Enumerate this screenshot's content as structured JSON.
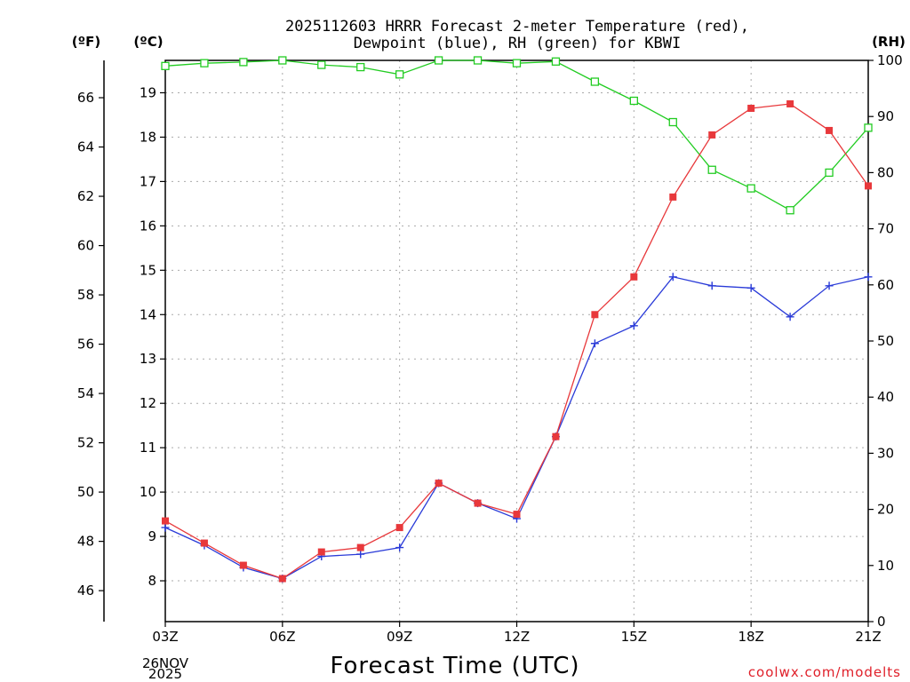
{
  "chart_data": {
    "type": "line",
    "title_line1": "2025112603 HRRR Forecast 2-meter Temperature (red),",
    "title_line2": "Dewpoint (blue), RH (green) for KBWI",
    "xlabel": "Forecast Time (UTC)",
    "x_hours": [
      3,
      4,
      5,
      6,
      7,
      8,
      9,
      10,
      11,
      12,
      13,
      14,
      15,
      16,
      17,
      18,
      19,
      20,
      21
    ],
    "x_ticks": [
      {
        "hour": 3,
        "label": "03Z"
      },
      {
        "hour": 6,
        "label": "06Z"
      },
      {
        "hour": 9,
        "label": "09Z"
      },
      {
        "hour": 12,
        "label": "12Z"
      },
      {
        "hour": 15,
        "label": "15Z"
      },
      {
        "hour": 18,
        "label": "18Z"
      },
      {
        "hour": 21,
        "label": "21Z"
      }
    ],
    "date_label_line1": "26NOV",
    "date_label_line2": "2025",
    "xlim": [
      3,
      21
    ],
    "y_left_c": {
      "unit": "(ºC)",
      "ylim": [
        7.08,
        19.73
      ],
      "ticks": [
        "8",
        "9",
        "10",
        "11",
        "12",
        "13",
        "14",
        "15",
        "16",
        "17",
        "18",
        "19"
      ]
    },
    "y_left_f": {
      "unit": "(ºF)",
      "ticks": [
        "46",
        "48",
        "50",
        "52",
        "54",
        "56",
        "58",
        "60",
        "62",
        "64",
        "66"
      ]
    },
    "y_right_rh": {
      "unit": "(RH)",
      "ylim": [
        0,
        100
      ],
      "ticks": [
        "0",
        "10",
        "20",
        "30",
        "40",
        "50",
        "60",
        "70",
        "80",
        "90",
        "100"
      ]
    },
    "series": [
      {
        "name": "Temperature",
        "axis": "c",
        "color": "#e8383b",
        "marker": "filled-square",
        "values": [
          9.35,
          8.85,
          8.35,
          8.05,
          8.65,
          8.75,
          9.2,
          10.2,
          9.75,
          9.5,
          11.25,
          14.0,
          14.85,
          16.65,
          18.05,
          18.65,
          18.75,
          18.15,
          16.9
        ]
      },
      {
        "name": "Dewpoint",
        "axis": "c",
        "color": "#2a3bd8",
        "marker": "plus",
        "values": [
          9.2,
          8.8,
          8.3,
          8.05,
          8.55,
          8.6,
          8.75,
          10.2,
          9.75,
          9.4,
          11.25,
          13.35,
          13.75,
          14.85,
          14.65,
          14.6,
          13.95,
          14.65,
          14.85
        ]
      },
      {
        "name": "RH",
        "axis": "rh",
        "color": "#22cc22",
        "marker": "open-square",
        "values": [
          99,
          99.5,
          99.7,
          100,
          99.2,
          98.8,
          97.5,
          100,
          100,
          99.5,
          99.8,
          96.2,
          92.8,
          89,
          80.5,
          77.2,
          73.3,
          80,
          88
        ]
      }
    ]
  },
  "credit": "coolwx.com/modelts"
}
